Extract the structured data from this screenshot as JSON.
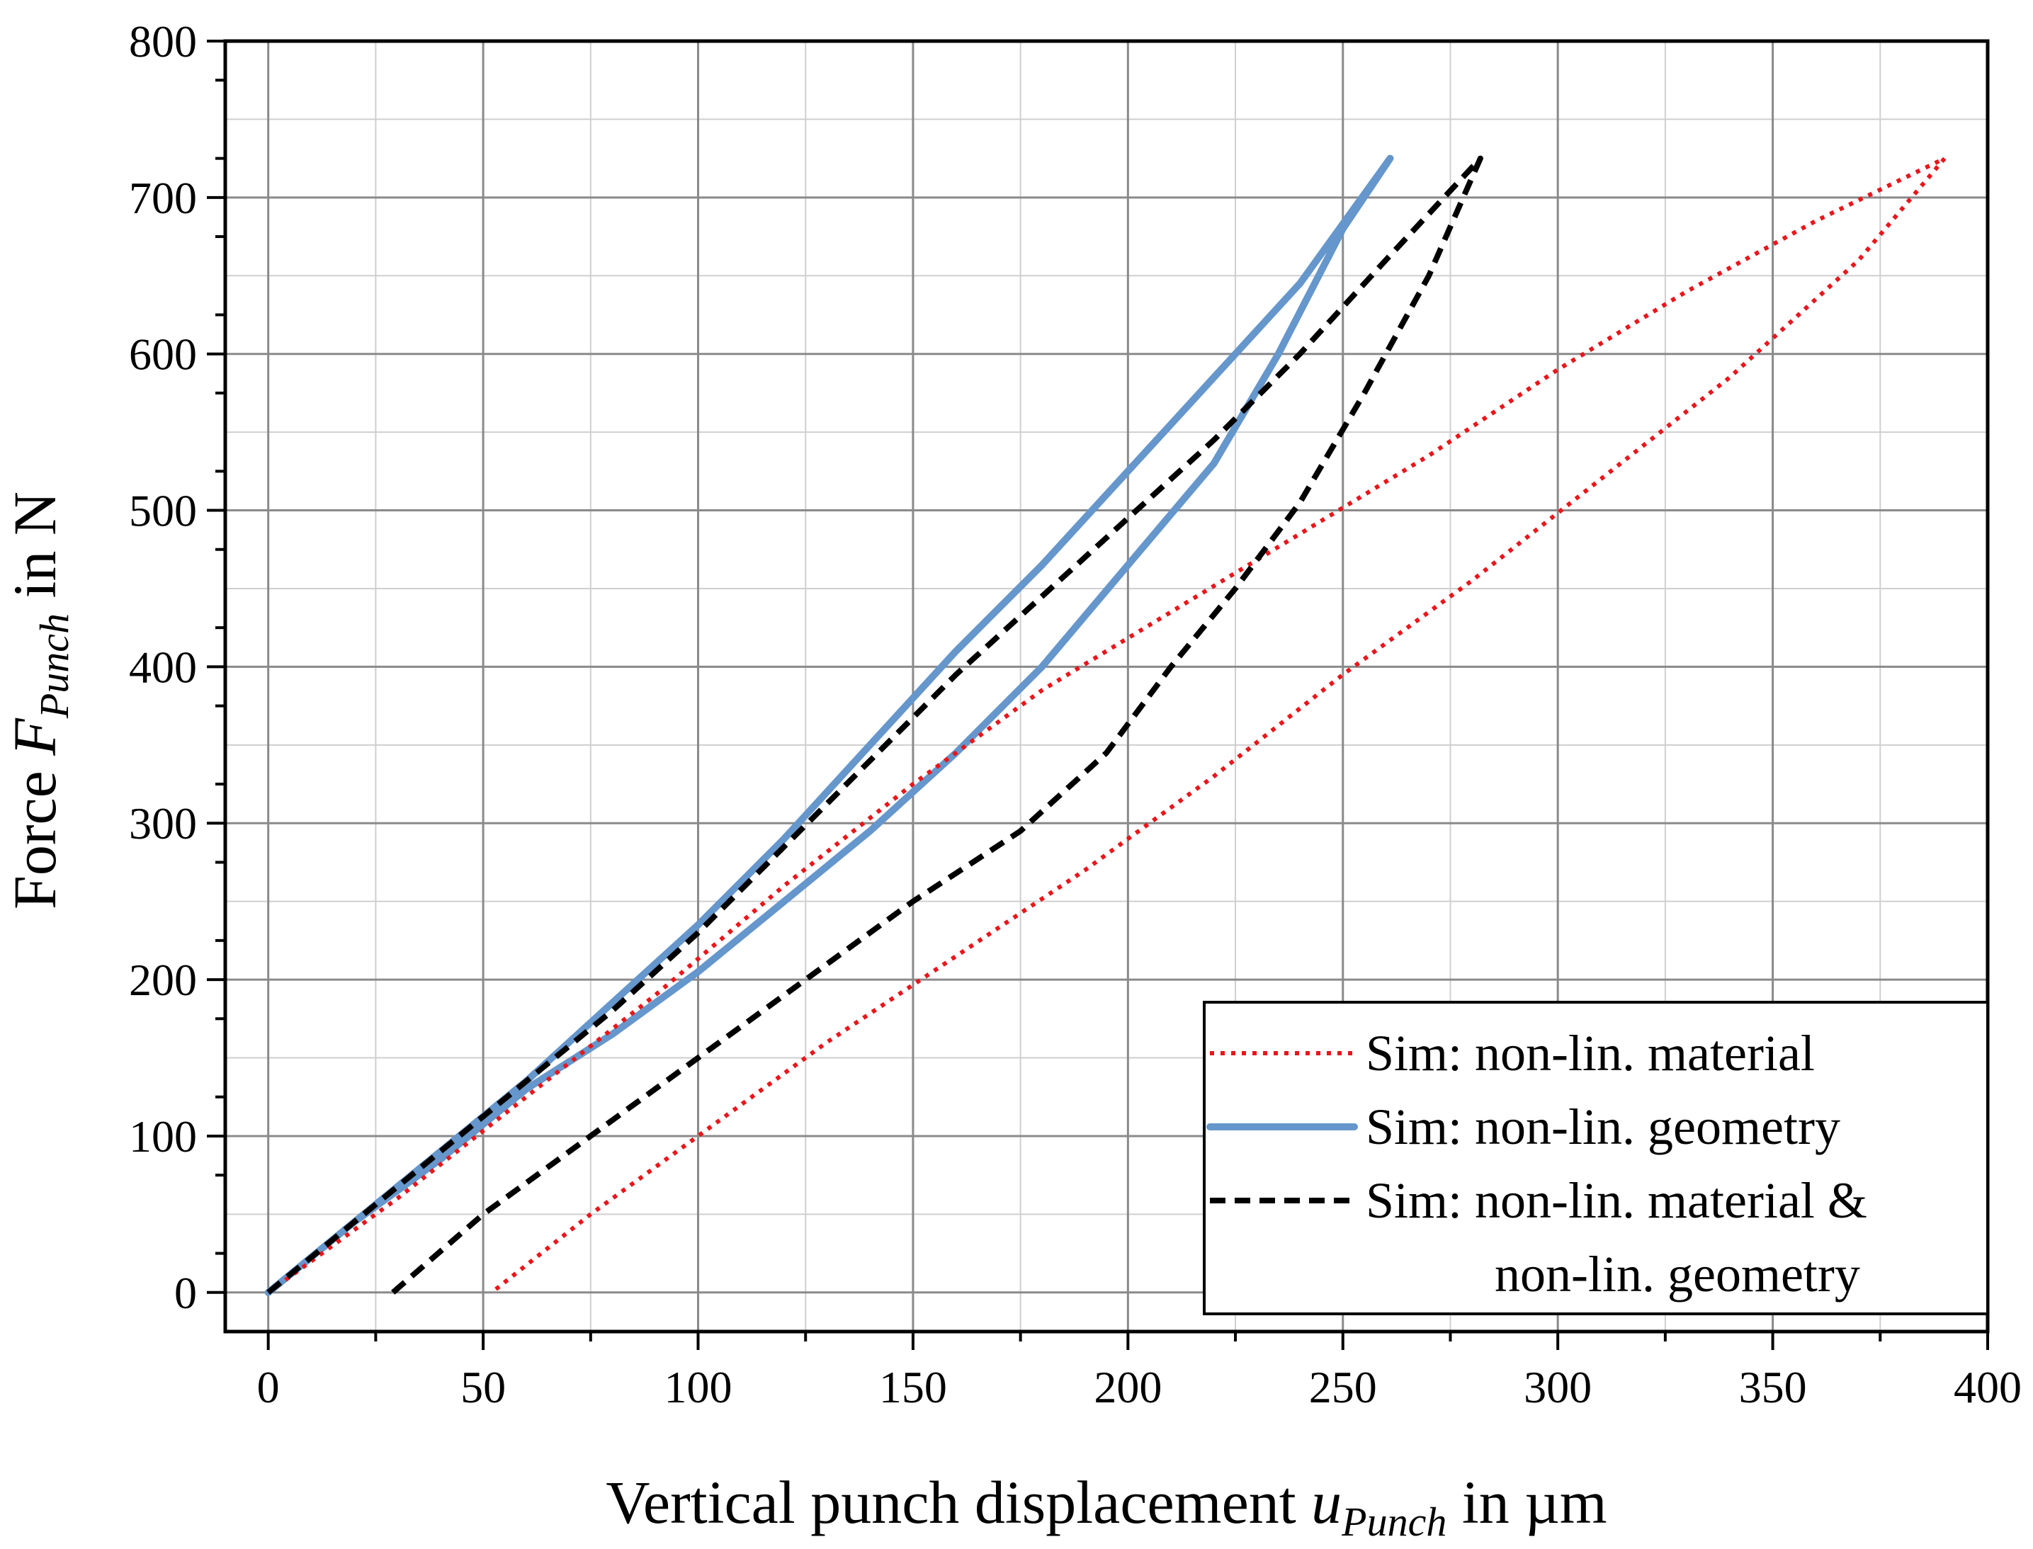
{
  "chart_data": {
    "type": "line",
    "xlabel": {
      "main": "Vertical punch displacement ",
      "italic": "u",
      "sub": "Punch",
      "unit": " in µm"
    },
    "ylabel": {
      "main": "Force ",
      "italic": "F",
      "sub": "Punch",
      "unit": " in N"
    },
    "xlim": [
      -10,
      400
    ],
    "ylim": [
      -25,
      800
    ],
    "xticks": [
      0,
      50,
      100,
      150,
      200,
      250,
      300,
      350,
      400
    ],
    "xtick_labels": [
      "0",
      "50",
      "100",
      "150",
      "200",
      "250",
      "300",
      "350",
      "400"
    ],
    "yticks": [
      0,
      100,
      200,
      300,
      400,
      500,
      600,
      700,
      800
    ],
    "ytick_labels": [
      "0",
      "100",
      "200",
      "300",
      "400",
      "500",
      "600",
      "700",
      "800"
    ],
    "grid": true,
    "legend_position": "bottom-right",
    "series": [
      {
        "name": "Sim: non-lin. material",
        "color": "#e8161b",
        "style": "dotted",
        "points": [
          [
            0,
            0
          ],
          [
            30,
            60
          ],
          [
            60,
            125
          ],
          [
            90,
            190
          ],
          [
            120,
            260
          ],
          [
            150,
            325
          ],
          [
            180,
            385
          ],
          [
            210,
            435
          ],
          [
            240,
            485
          ],
          [
            270,
            535
          ],
          [
            300,
            590
          ],
          [
            330,
            640
          ],
          [
            360,
            685
          ],
          [
            390,
            725
          ],
          [
            370,
            660
          ],
          [
            340,
            585
          ],
          [
            310,
            520
          ],
          [
            280,
            455
          ],
          [
            250,
            395
          ],
          [
            220,
            330
          ],
          [
            190,
            270
          ],
          [
            160,
            215
          ],
          [
            130,
            160
          ],
          [
            100,
            100
          ],
          [
            75,
            50
          ],
          [
            52,
            0
          ]
        ]
      },
      {
        "name": "Sim: non-lin. geometry",
        "color": "#6596cc",
        "style": "solid",
        "points": [
          [
            0,
            0
          ],
          [
            20,
            45
          ],
          [
            40,
            90
          ],
          [
            60,
            135
          ],
          [
            80,
            185
          ],
          [
            100,
            235
          ],
          [
            120,
            290
          ],
          [
            140,
            350
          ],
          [
            160,
            410
          ],
          [
            180,
            465
          ],
          [
            200,
            525
          ],
          [
            220,
            585
          ],
          [
            240,
            645
          ],
          [
            261,
            725
          ],
          [
            250,
            680
          ],
          [
            235,
            600
          ],
          [
            220,
            530
          ],
          [
            200,
            465
          ],
          [
            180,
            400
          ],
          [
            160,
            345
          ],
          [
            140,
            295
          ],
          [
            120,
            250
          ],
          [
            100,
            205
          ],
          [
            80,
            165
          ],
          [
            60,
            130
          ],
          [
            40,
            85
          ],
          [
            20,
            45
          ],
          [
            0,
            0
          ]
        ]
      },
      {
        "name": "Sim: non-lin. material & non-lin. geometry",
        "label_lines": [
          "Sim: non-lin. material &",
          "non-lin. geometry"
        ],
        "color": "#000000",
        "style": "dashed",
        "points": [
          [
            0,
            0
          ],
          [
            20,
            45
          ],
          [
            40,
            90
          ],
          [
            60,
            135
          ],
          [
            80,
            180
          ],
          [
            100,
            230
          ],
          [
            120,
            285
          ],
          [
            140,
            340
          ],
          [
            160,
            395
          ],
          [
            180,
            445
          ],
          [
            200,
            495
          ],
          [
            220,
            545
          ],
          [
            240,
            600
          ],
          [
            260,
            660
          ],
          [
            282,
            725
          ],
          [
            270,
            650
          ],
          [
            255,
            575
          ],
          [
            240,
            505
          ],
          [
            225,
            450
          ],
          [
            210,
            400
          ],
          [
            195,
            345
          ],
          [
            175,
            295
          ],
          [
            150,
            250
          ],
          [
            125,
            200
          ],
          [
            100,
            150
          ],
          [
            75,
            100
          ],
          [
            50,
            50
          ],
          [
            29,
            0
          ]
        ]
      }
    ]
  }
}
